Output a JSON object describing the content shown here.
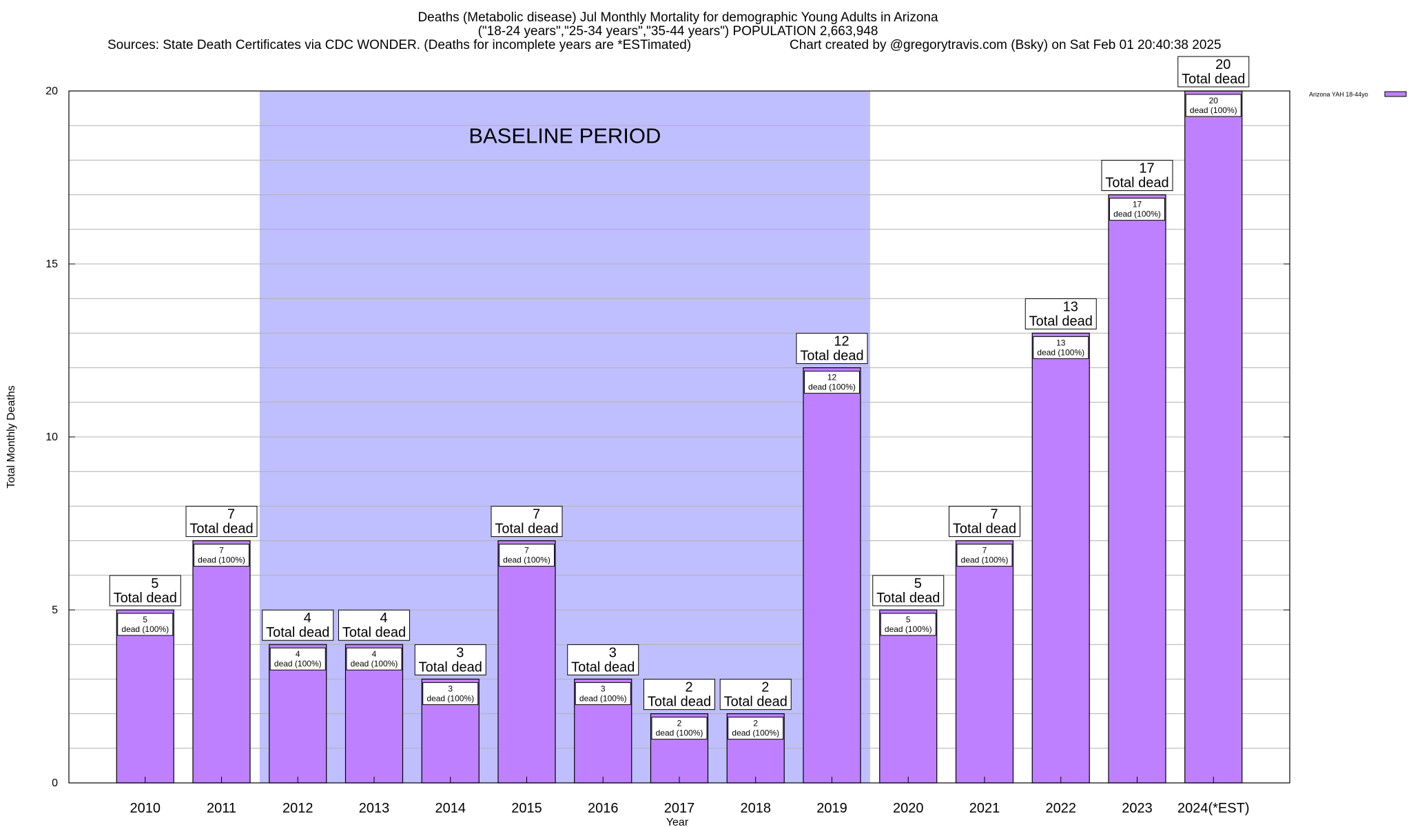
{
  "chart_data": {
    "type": "bar",
    "title_lines": [
      "Deaths (Metabolic disease) Jul Monthly Mortality for demographic Young Adults in Arizona",
      "(\"18-24 years\",\"25-34 years\",\"35-44 years\") POPULATION 2,663,948"
    ],
    "sources_text": "Sources: State Death Certificates via CDC WONDER. (Deaths for incomplete years are *ESTimated)",
    "credit_text": "Chart created by @gregorytravis.com (Bsky) on Sat Feb 01 20:40:38 2025",
    "xlabel": "Year",
    "ylabel": "Total Monthly Deaths",
    "ylim": [
      0,
      20
    ],
    "yticks": [
      0,
      5,
      10,
      15,
      20
    ],
    "grid": "horizontal",
    "legend_position": "top-right",
    "categories": [
      "2010",
      "2011",
      "2012",
      "2013",
      "2014",
      "2015",
      "2016",
      "2017",
      "2018",
      "2019",
      "2020",
      "2021",
      "2022",
      "2023",
      "2024(*EST)"
    ],
    "series": [
      {
        "name": "Arizona YAH 18-44yo",
        "values": [
          5,
          7,
          4,
          4,
          3,
          7,
          3,
          2,
          2,
          12,
          5,
          7,
          13,
          17,
          20
        ]
      }
    ],
    "top_label_text": "Total dead",
    "inner_label_text": "dead (100%)",
    "baseline": {
      "label": "BASELINE PERIOD",
      "from": "2012",
      "to": "2019"
    },
    "colors": {
      "bar_fill": "#bf80ff",
      "baseline_fill": "#bfbfff",
      "grid": "#b0b0b0"
    }
  }
}
